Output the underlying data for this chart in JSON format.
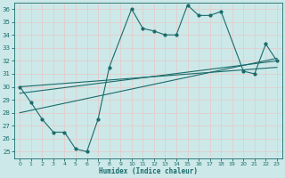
{
  "xlabel": "Humidex (Indice chaleur)",
  "bg_color": "#cce8e8",
  "grid_color": "#e8c8c8",
  "line_color": "#1a6b6b",
  "ylim": [
    24.5,
    36.5
  ],
  "xlim": [
    -0.5,
    23.5
  ],
  "yticks": [
    25,
    26,
    27,
    28,
    29,
    30,
    31,
    32,
    33,
    34,
    35,
    36
  ],
  "xticks": [
    0,
    1,
    2,
    3,
    4,
    5,
    6,
    7,
    8,
    9,
    10,
    11,
    12,
    13,
    14,
    15,
    16,
    17,
    18,
    19,
    20,
    21,
    22,
    23
  ],
  "main_x": [
    0,
    1,
    2,
    3,
    4,
    5,
    6,
    7,
    8,
    10,
    11,
    12,
    13,
    14,
    15,
    16,
    17,
    18,
    20,
    21,
    22,
    23
  ],
  "main_y": [
    30,
    28.8,
    27.5,
    26.5,
    26.5,
    25.2,
    25.0,
    27.5,
    31.5,
    36.0,
    34.5,
    34.3,
    34.0,
    34.0,
    36.3,
    35.5,
    35.5,
    35.8,
    31.2,
    31.0,
    33.3,
    32.0
  ],
  "trend1_x": [
    0,
    23
  ],
  "trend1_y": [
    28.0,
    32.2
  ],
  "trend2_x": [
    0,
    23
  ],
  "trend2_y": [
    29.5,
    32.0
  ],
  "trend3_x": [
    0,
    23
  ],
  "trend3_y": [
    30.0,
    31.5
  ]
}
